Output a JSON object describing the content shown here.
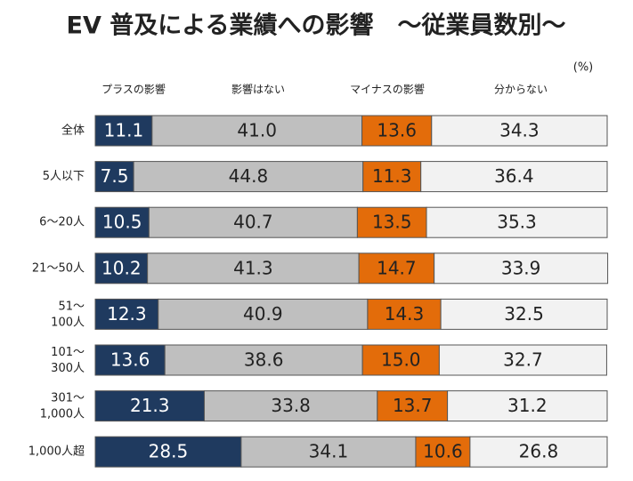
{
  "chart_data": {
    "type": "stacked-bar-horizontal",
    "title": "EV 普及による業績への影響　～従業員数別～",
    "unit_label": "(%)",
    "categories": [
      "全体",
      "5人以下",
      "6～20人",
      "21～50人",
      "51～\n100人",
      "101～\n300人",
      "301～\n1,000人",
      "1,000人超"
    ],
    "series": [
      {
        "name": "プラスの影響",
        "color": "#1f3a5f",
        "values": [
          11.1,
          7.5,
          10.5,
          10.2,
          12.3,
          13.6,
          21.3,
          28.5
        ],
        "value_labels": [
          "11.1",
          "7.5",
          "10.5",
          "10.2",
          "12.3",
          "13.6",
          "21.3",
          "28.5"
        ]
      },
      {
        "name": "影響はない",
        "color": "#bfbfbf",
        "values": [
          41.0,
          44.8,
          40.7,
          41.3,
          40.9,
          38.6,
          33.8,
          34.1
        ],
        "value_labels": [
          "41.0",
          "44.8",
          "40.7",
          "41.3",
          "40.9",
          "38.6",
          "33.8",
          "34.1"
        ]
      },
      {
        "name": "マイナスの影響",
        "color": "#e36c0a",
        "values": [
          13.6,
          11.3,
          13.5,
          14.7,
          14.3,
          15.0,
          13.7,
          10.6
        ],
        "value_labels": [
          "13.6",
          "11.3",
          "13.5",
          "14.7",
          "14.3",
          "15.0",
          "13.7",
          "10.6"
        ]
      },
      {
        "name": "分からない",
        "color": "#f2f2f2",
        "values": [
          34.3,
          36.4,
          35.3,
          33.9,
          32.5,
          32.7,
          31.2,
          26.8
        ],
        "value_labels": [
          "34.3",
          "36.4",
          "35.3",
          "33.9",
          "32.5",
          "32.7",
          "31.2",
          "26.8"
        ]
      }
    ]
  }
}
